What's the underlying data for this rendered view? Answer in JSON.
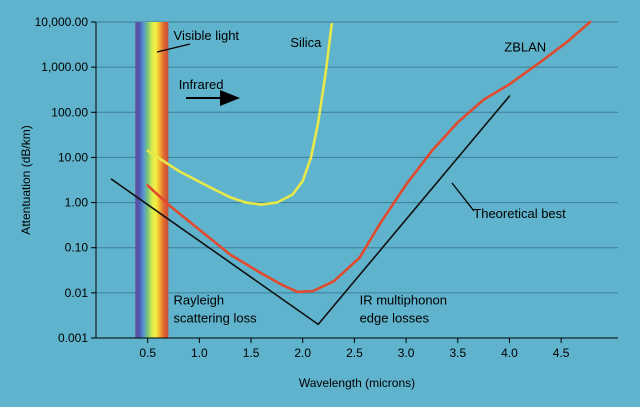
{
  "chart_data": {
    "type": "line",
    "title": "",
    "xlabel": "Wavelength (microns)",
    "ylabel": "Attentuation (dB/km)",
    "xlim": [
      0,
      5.05
    ],
    "y_scale": "log",
    "ylim": [
      0.001,
      10000
    ],
    "x_ticks": [
      0.5,
      1.0,
      1.5,
      2.0,
      2.5,
      3.0,
      3.5,
      4.0,
      4.5
    ],
    "x_tick_labels": [
      "0.5",
      "1.0",
      "1.5",
      "2.0",
      "2.5",
      "3.0",
      "3.5",
      "4.0",
      "4.5"
    ],
    "y_ticks": [
      0.001,
      0.01,
      0.1,
      1,
      10,
      100,
      1000,
      10000
    ],
    "y_tick_labels": [
      "0.001",
      "0.01",
      "0.10",
      "1.00",
      "10.00",
      "100.00",
      "1,000.00",
      "10,000.00"
    ],
    "grid": {
      "horizontal": true,
      "vertical": false
    },
    "visible_band": {
      "x_start": 0.38,
      "x_end": 0.7
    },
    "series": [
      {
        "name": "Silica",
        "color": "#e8e84a",
        "points": [
          [
            0.5,
            14
          ],
          [
            0.8,
            5
          ],
          [
            1.1,
            2.2
          ],
          [
            1.3,
            1.3
          ],
          [
            1.45,
            1.0
          ],
          [
            1.6,
            0.9
          ],
          [
            1.75,
            1.0
          ],
          [
            1.9,
            1.5
          ],
          [
            2.0,
            3
          ],
          [
            2.08,
            10
          ],
          [
            2.15,
            60
          ],
          [
            2.22,
            700
          ],
          [
            2.28,
            9000
          ]
        ]
      },
      {
        "name": "ZBLAN",
        "color": "#e24a2e",
        "points": [
          [
            0.5,
            2.4
          ],
          [
            0.7,
            0.9
          ],
          [
            1.0,
            0.25
          ],
          [
            1.3,
            0.07
          ],
          [
            1.6,
            0.027
          ],
          [
            1.8,
            0.015
          ],
          [
            1.95,
            0.0105
          ],
          [
            2.1,
            0.011
          ],
          [
            2.3,
            0.018
          ],
          [
            2.55,
            0.06
          ],
          [
            2.75,
            0.35
          ],
          [
            3.0,
            2.5
          ],
          [
            3.25,
            14
          ],
          [
            3.5,
            60
          ],
          [
            3.75,
            190
          ],
          [
            4.0,
            420
          ],
          [
            4.3,
            1300
          ],
          [
            4.55,
            3500
          ],
          [
            4.78,
            10000
          ]
        ]
      },
      {
        "name": "Theoretical best",
        "color": "#111111",
        "points": [
          [
            0.15,
            3.3
          ],
          [
            2.15,
            0.002
          ],
          [
            4.0,
            230
          ]
        ]
      }
    ],
    "annotations": [
      {
        "text": "Visible light",
        "x": 0.75,
        "y": 4000
      },
      {
        "text": "Silica",
        "x": 1.88,
        "y": 2800
      },
      {
        "text": "ZBLAN",
        "x": 3.95,
        "y": 2200
      },
      {
        "text": "Infrared",
        "x": 0.8,
        "y": 330
      },
      {
        "text": "Theoretical best",
        "x": 3.65,
        "y": 0.45
      },
      {
        "text": "Rayleigh",
        "x": 0.75,
        "y": 0.0055
      },
      {
        "text": "scattering loss",
        "x": 0.75,
        "y": 0.0022
      },
      {
        "text": "IR multiphonon",
        "x": 2.55,
        "y": 0.0055
      },
      {
        "text": "edge losses",
        "x": 2.55,
        "y": 0.0022
      }
    ]
  }
}
